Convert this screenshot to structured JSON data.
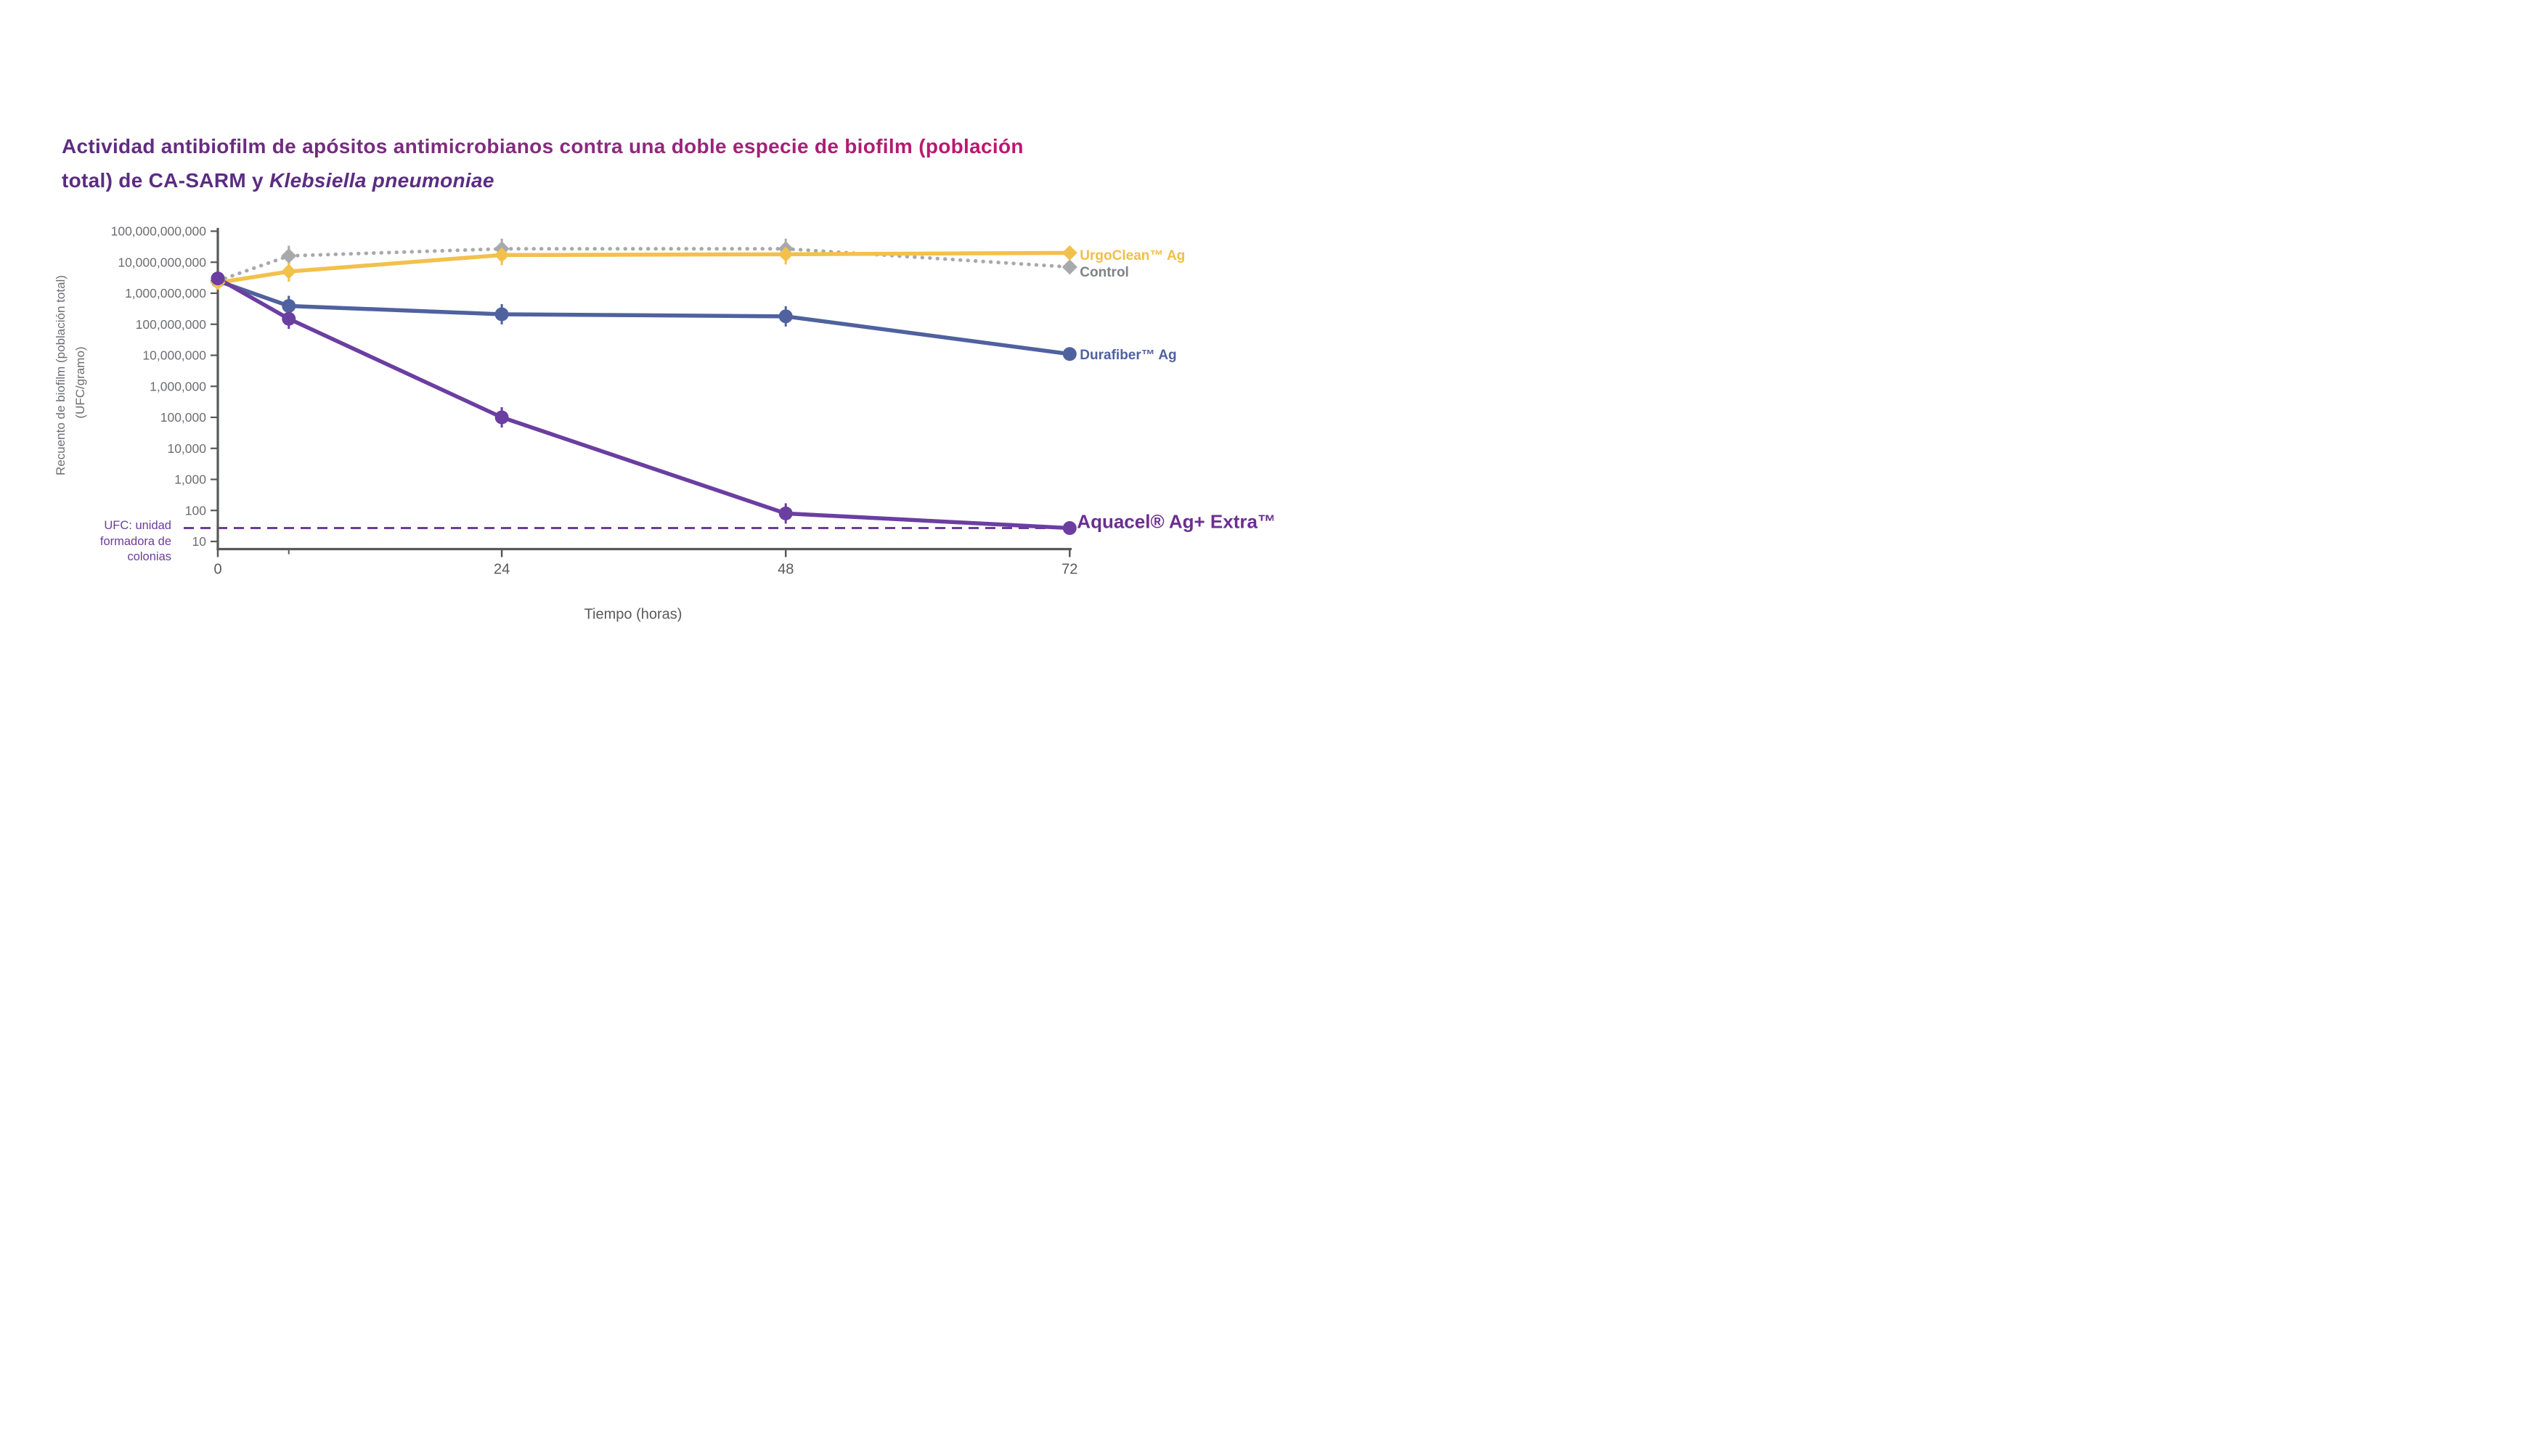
{
  "title": {
    "line1": "Actividad antibiofilm de apósitos antimicrobianos contra una doble especie de biofilm (población",
    "line2_prefix": "total) de CA-SARM y ",
    "line2_italic": "Klebsiella pneumoniae",
    "gradient_start": "#5B2D82",
    "gradient_end": "#C4146E"
  },
  "chart_data": {
    "type": "line",
    "x_label": "Tiempo (horas)",
    "y_label_line1": "Recuento de biofilm (población total)",
    "y_label_line2": "(UFC/gramo)",
    "y_scale": "log10",
    "y_ticks": [
      100000000000,
      10000000000,
      1000000000,
      100000000,
      10000000,
      1000000,
      100000,
      10000,
      1000,
      100,
      10
    ],
    "x_ticks": [
      0,
      24,
      48,
      72
    ],
    "x_minor_ticks": [
      6
    ],
    "x": [
      0,
      6,
      24,
      48,
      72
    ],
    "series": [
      {
        "name": "Control",
        "values": [
          2500000000,
          16000000000,
          27000000000,
          27000000000,
          7000000000
        ],
        "color": "#A7A9AC",
        "label_color": "#808285",
        "marker": "diamond",
        "line_style": "dotted"
      },
      {
        "name": "UrgoClean™ Ag",
        "values": [
          2200000000,
          5000000000,
          17000000000,
          18000000000,
          20000000000
        ],
        "color": "#F2C14B",
        "label_color": "#F2BE45",
        "marker": "diamond",
        "line_style": "solid"
      },
      {
        "name": "Durafiber™ Ag",
        "values": [
          2500000000,
          390000000,
          210000000,
          180000000,
          11000000
        ],
        "color": "#50619F",
        "label_color": "#50619F",
        "marker": "circle",
        "line_style": "solid"
      },
      {
        "name": "Aquacel® Ag+ Extra™",
        "values": [
          3000000000,
          150000000,
          100000,
          80,
          27
        ],
        "color": "#6B3EA1",
        "label_color": "#6B2F91",
        "marker": "circle",
        "line_style": "solid"
      }
    ],
    "detection_line": {
      "y_value": 27,
      "color": "#6C3D98",
      "style": "dashed"
    },
    "footnote": {
      "line1": "UFC: unidad",
      "line2": "formadora de",
      "line3": "colonias",
      "color": "#6C3D98"
    },
    "axis_color": "#58595B",
    "tick_text_color": "#6D6E71",
    "grid": false,
    "legend_position": "right-of-line-ends"
  }
}
